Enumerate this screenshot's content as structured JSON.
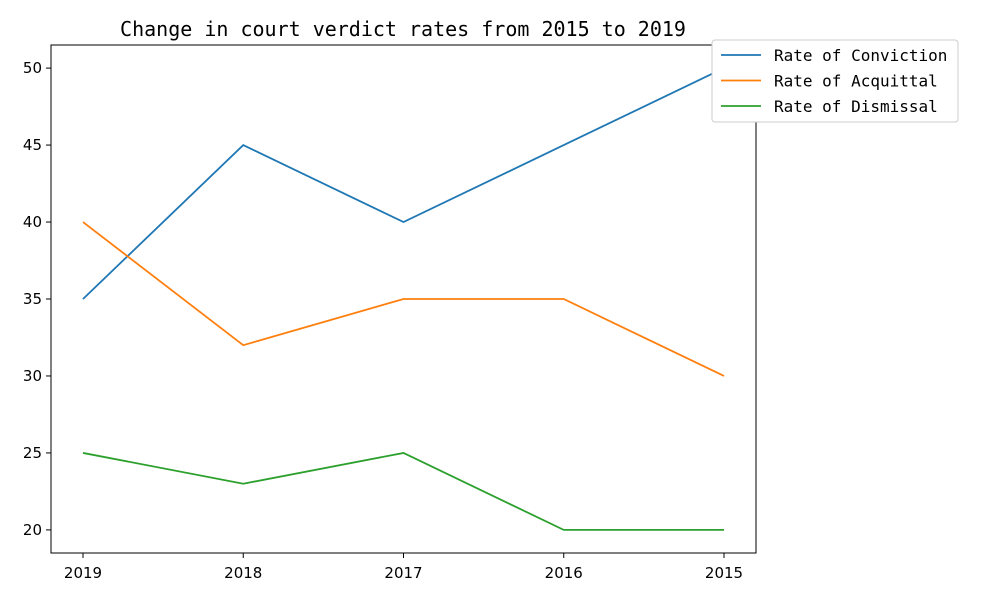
{
  "chart_data": {
    "type": "line",
    "title": "Change in court verdict rates from 2015 to 2019",
    "xlabel": "",
    "ylabel": "",
    "categories": [
      "2019",
      "2018",
      "2017",
      "2016",
      "2015"
    ],
    "series": [
      {
        "name": "Rate of Conviction",
        "color": "#1f77b4",
        "values": [
          35,
          45,
          40,
          45,
          50
        ]
      },
      {
        "name": "Rate of Acquittal",
        "color": "#ff7f0e",
        "values": [
          40,
          32,
          35,
          35,
          30
        ]
      },
      {
        "name": "Rate of Dismissal",
        "color": "#2ca02c",
        "values": [
          25,
          23,
          25,
          20,
          20
        ]
      }
    ],
    "yticks": [
      20,
      25,
      30,
      35,
      40,
      45,
      50
    ],
    "ylim": [
      18.5,
      51.5
    ],
    "grid": false,
    "legend_position": "top-right"
  }
}
